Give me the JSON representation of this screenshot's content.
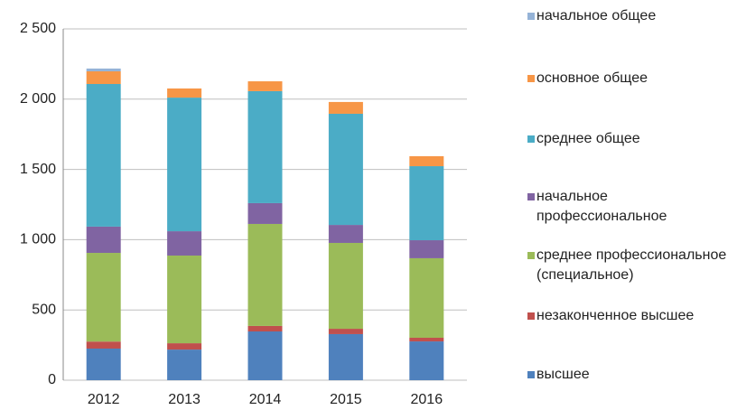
{
  "chart_data": {
    "type": "stacked_bar",
    "categories": [
      "2012",
      "2013",
      "2014",
      "2015",
      "2016"
    ],
    "series": [
      {
        "name": "высшее",
        "color": "#4f81bd",
        "values": [
          225,
          218,
          347,
          328,
          276
        ]
      },
      {
        "name": "незаконченное высшее",
        "color": "#c0504d",
        "values": [
          50,
          45,
          39,
          38,
          26
        ]
      },
      {
        "name": "среднее профессиональное (специальное)",
        "color": "#9bbb59",
        "values": [
          631,
          624,
          726,
          611,
          566
        ]
      },
      {
        "name": "начальное профессиональное",
        "color": "#8064a2",
        "values": [
          187,
          173,
          148,
          128,
          128
        ]
      },
      {
        "name": "среднее общее",
        "color": "#4bacc6",
        "values": [
          1015,
          951,
          797,
          791,
          527
        ]
      },
      {
        "name": "основное общее",
        "color": "#f79646",
        "values": [
          90,
          65,
          70,
          84,
          71
        ]
      },
      {
        "name": "начальное общее",
        "color": "#95b3d7",
        "values": [
          20,
          0,
          0,
          0,
          0
        ]
      }
    ],
    "ylim": [
      0,
      2500
    ],
    "yticks": [
      0,
      500,
      {
        "value": 1000,
        "label": "1 000"
      },
      {
        "value": 1500,
        "label": "1 500"
      },
      {
        "value": 2000,
        "label": "2 000"
      },
      {
        "value": 2500,
        "label": "2 500"
      }
    ],
    "grid": true,
    "legend": "right"
  }
}
